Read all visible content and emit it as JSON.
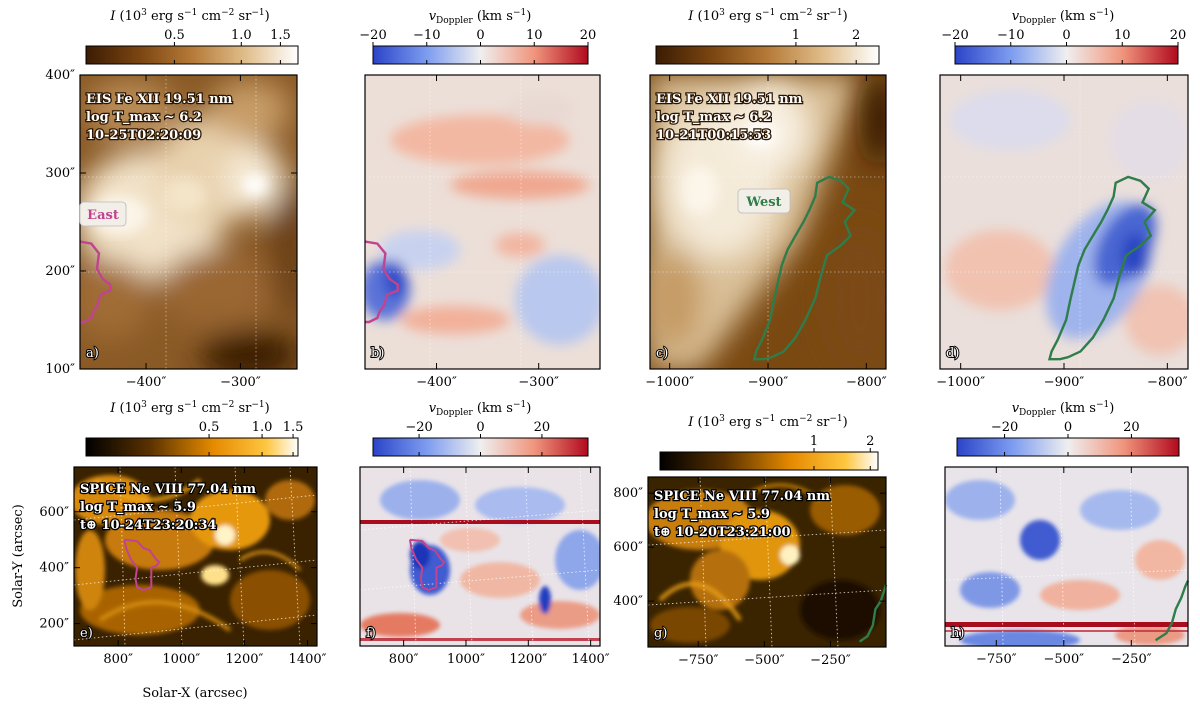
{
  "chart_data": [
    {
      "type": "heatmap",
      "panel_label": "a)",
      "map": "intensity",
      "instrument": "EIS",
      "line": "Fe XII 19.51 nm",
      "ann_lines": [
        "EIS Fe XII 19.51 nm",
        "log T_max ~ 6.2",
        "10-25T02:20:09"
      ],
      "colorbar": {
        "label": "I (10^3 erg s^-1 cm^-2 sr^-1)",
        "scale": "log",
        "range": [
          0.2,
          1.8
        ],
        "ticks": [
          0.5,
          1.0,
          1.5
        ],
        "tick_labels": [
          "0.5",
          "1.0",
          "1.5"
        ]
      },
      "xlim": [
        -470,
        -240
      ],
      "ylim": [
        100,
        400
      ],
      "xticks": [
        -400,
        -300
      ],
      "xtick_labels": [
        "−400″",
        "−300″"
      ],
      "yticks": [
        100,
        200,
        300,
        400
      ],
      "ytick_labels": [
        "100″",
        "200″",
        "300″",
        "400″"
      ],
      "region_label": "East",
      "contour_color": "#c0448f",
      "contour": [
        [
          -470,
          230
        ],
        [
          -458,
          228
        ],
        [
          -450,
          218
        ],
        [
          -452,
          202
        ],
        [
          -446,
          192
        ],
        [
          -438,
          186
        ],
        [
          -438,
          180
        ],
        [
          -448,
          176
        ],
        [
          -452,
          164
        ],
        [
          -456,
          158
        ],
        [
          -458,
          152
        ],
        [
          -466,
          148
        ],
        [
          -470,
          148
        ]
      ]
    },
    {
      "type": "heatmap",
      "panel_label": "b)",
      "map": "doppler",
      "colorbar": {
        "label": "v_Doppler (km s^-1)",
        "range": [
          -20,
          20
        ],
        "ticks": [
          -20,
          -10,
          0,
          10,
          20
        ],
        "tick_labels": [
          "−20",
          "−10",
          "0",
          "10",
          "20"
        ]
      },
      "xlim": [
        -470,
        -240
      ],
      "ylim": [
        100,
        400
      ],
      "xticks": [
        -400,
        -300
      ],
      "xtick_labels": [
        "−400″",
        "−300″"
      ],
      "contour_color": "#c0448f",
      "contour": [
        [
          -470,
          230
        ],
        [
          -458,
          228
        ],
        [
          -450,
          218
        ],
        [
          -452,
          202
        ],
        [
          -446,
          192
        ],
        [
          -438,
          186
        ],
        [
          -438,
          180
        ],
        [
          -448,
          176
        ],
        [
          -452,
          164
        ],
        [
          -456,
          158
        ],
        [
          -458,
          152
        ],
        [
          -466,
          148
        ],
        [
          -470,
          148
        ]
      ]
    },
    {
      "type": "heatmap",
      "panel_label": "c)",
      "map": "intensity",
      "instrument": "EIS",
      "line": "Fe XII 19.51 nm",
      "ann_lines": [
        "EIS Fe XII 19.51 nm",
        "log T_max ~ 6.2",
        "10-21T00:15:53"
      ],
      "colorbar": {
        "label": "I (10^3 erg s^-1 cm^-2 sr^-1)",
        "scale": "log",
        "range": [
          0.2,
          2.6
        ],
        "ticks": [
          1,
          2
        ],
        "tick_labels": [
          "1",
          "2"
        ]
      },
      "xlim": [
        -1020,
        -780
      ],
      "ylim": [
        100,
        400
      ],
      "xticks": [
        -1000,
        -900,
        -800
      ],
      "xtick_labels": [
        "−1000″",
        "−900″",
        "−800″"
      ],
      "region_label": "West",
      "contour_color": "#2e7d4a",
      "contour": [
        [
          -896,
          112
        ],
        [
          -884,
          118
        ],
        [
          -872,
          132
        ],
        [
          -862,
          150
        ],
        [
          -852,
          172
        ],
        [
          -846,
          196
        ],
        [
          -840,
          216
        ],
        [
          -826,
          226
        ],
        [
          -816,
          236
        ],
        [
          -822,
          250
        ],
        [
          -812,
          262
        ],
        [
          -824,
          270
        ],
        [
          -818,
          284
        ],
        [
          -826,
          292
        ],
        [
          -838,
          296
        ],
        [
          -850,
          290
        ],
        [
          -852,
          276
        ],
        [
          -858,
          262
        ],
        [
          -864,
          250
        ],
        [
          -872,
          236
        ],
        [
          -880,
          222
        ],
        [
          -886,
          206
        ],
        [
          -890,
          188
        ],
        [
          -894,
          170
        ],
        [
          -898,
          150
        ],
        [
          -906,
          130
        ],
        [
          -912,
          118
        ],
        [
          -914,
          110
        ],
        [
          -904,
          110
        ],
        [
          -896,
          112
        ]
      ]
    },
    {
      "type": "heatmap",
      "panel_label": "d)",
      "map": "doppler",
      "colorbar": {
        "label": "v_Doppler (km s^-1)",
        "range": [
          -20,
          20
        ],
        "ticks": [
          -20,
          -10,
          0,
          10,
          20
        ],
        "tick_labels": [
          "−20",
          "−10",
          "0",
          "10",
          "20"
        ]
      },
      "xlim": [
        -1020,
        -780
      ],
      "ylim": [
        100,
        400
      ],
      "xticks": [
        -1000,
        -900,
        -800
      ],
      "xtick_labels": [
        "−1000″",
        "−900″",
        "−800″"
      ],
      "contour_color": "#2e7d4a",
      "contour": [
        [
          -896,
          112
        ],
        [
          -884,
          118
        ],
        [
          -872,
          132
        ],
        [
          -862,
          150
        ],
        [
          -852,
          172
        ],
        [
          -846,
          196
        ],
        [
          -840,
          216
        ],
        [
          -826,
          226
        ],
        [
          -816,
          236
        ],
        [
          -822,
          250
        ],
        [
          -812,
          262
        ],
        [
          -824,
          270
        ],
        [
          -818,
          284
        ],
        [
          -826,
          292
        ],
        [
          -838,
          296
        ],
        [
          -850,
          290
        ],
        [
          -852,
          276
        ],
        [
          -858,
          262
        ],
        [
          -864,
          250
        ],
        [
          -872,
          236
        ],
        [
          -880,
          222
        ],
        [
          -886,
          206
        ],
        [
          -890,
          188
        ],
        [
          -894,
          170
        ],
        [
          -898,
          150
        ],
        [
          -906,
          130
        ],
        [
          -912,
          118
        ],
        [
          -914,
          110
        ],
        [
          -904,
          110
        ],
        [
          -896,
          112
        ]
      ]
    },
    {
      "type": "heatmap",
      "panel_label": "e)",
      "map": "intensity_spice",
      "instrument": "SPICE",
      "line": "Ne VIII 77.04 nm",
      "ann_lines": [
        "SPICE Ne VIII 77.04 nm",
        "log T_max ~ 5.9",
        "t⊕ 10-24T23:20:34"
      ],
      "colorbar": {
        "label": "I (10^3 erg s^-1 cm^-2 sr^-1)",
        "scale": "log",
        "range": [
          0.1,
          1.6
        ],
        "ticks": [
          0.5,
          1.0,
          1.5
        ],
        "tick_labels": [
          "0.5",
          "1.0",
          "1.5"
        ]
      },
      "xlim": [
        660,
        1430
      ],
      "ylim": [
        120,
        760
      ],
      "xticks": [
        800,
        1000,
        1200,
        1400
      ],
      "xtick_labels": [
        "800″",
        "1000″",
        "1200″",
        "1400″"
      ],
      "yticks": [
        200,
        400,
        600
      ],
      "ytick_labels": [
        "200″",
        "400″",
        "600″"
      ],
      "xlabel": "Solar-X (arcsec)",
      "ylabel": "Solar-Y (arcsec)",
      "contour_color": "#c0448f",
      "contour": [
        [
          820,
          500
        ],
        [
          860,
          495
        ],
        [
          880,
          470
        ],
        [
          900,
          462
        ],
        [
          920,
          430
        ],
        [
          930,
          420
        ],
        [
          922,
          408
        ],
        [
          905,
          400
        ],
        [
          905,
          330
        ],
        [
          880,
          320
        ],
        [
          860,
          330
        ],
        [
          855,
          360
        ],
        [
          860,
          400
        ],
        [
          840,
          430
        ],
        [
          825,
          470
        ],
        [
          820,
          500
        ]
      ]
    },
    {
      "type": "heatmap",
      "panel_label": "f)",
      "map": "doppler_spice",
      "colorbar": {
        "label": "v_Doppler (km s^-1)",
        "range": [
          -35,
          35
        ],
        "ticks": [
          -20,
          0,
          20
        ],
        "tick_labels": [
          "−20",
          "0",
          "20"
        ]
      },
      "xlim": [
        660,
        1430
      ],
      "ylim": [
        120,
        760
      ],
      "xticks": [
        800,
        1000,
        1200,
        1400
      ],
      "xtick_labels": [
        "800″",
        "1000″",
        "1200″",
        "1400″"
      ],
      "contour_color": "#c0448f",
      "contour": [
        [
          820,
          500
        ],
        [
          860,
          495
        ],
        [
          880,
          470
        ],
        [
          900,
          462
        ],
        [
          920,
          430
        ],
        [
          930,
          420
        ],
        [
          922,
          408
        ],
        [
          905,
          400
        ],
        [
          905,
          330
        ],
        [
          880,
          320
        ],
        [
          860,
          330
        ],
        [
          855,
          360
        ],
        [
          860,
          400
        ],
        [
          840,
          430
        ],
        [
          825,
          470
        ],
        [
          820,
          500
        ]
      ]
    },
    {
      "type": "heatmap",
      "panel_label": "g)",
      "map": "intensity_spice",
      "instrument": "SPICE",
      "line": "Ne VIII 77.04 nm",
      "ann_lines": [
        "SPICE Ne VIII 77.04 nm",
        "log T_max ~ 5.9",
        "t⊕ 10-20T23:21:00"
      ],
      "colorbar": {
        "label": "I (10^3 erg s^-1 cm^-2 sr^-1)",
        "scale": "log",
        "range": [
          0.15,
          2.2
        ],
        "ticks": [
          1,
          2
        ],
        "tick_labels": [
          "1",
          "2"
        ]
      },
      "xlim": [
        -940,
        -40
      ],
      "ylim": [
        230,
        860
      ],
      "xticks": [
        -750,
        -500,
        -250
      ],
      "xtick_labels": [
        "−750″",
        "−500″",
        "−250″"
      ],
      "yticks": [
        400,
        600,
        800
      ],
      "ytick_labels": [
        "400″",
        "600″",
        "800″"
      ],
      "contour_color": "#2e7d4a",
      "contour": [
        [
          -140,
          250
        ],
        [
          -110,
          270
        ],
        [
          -90,
          310
        ],
        [
          -80,
          370
        ],
        [
          -60,
          400
        ],
        [
          -50,
          430
        ],
        [
          -40,
          460
        ]
      ]
    },
    {
      "type": "heatmap",
      "panel_label": "h)",
      "map": "doppler_spice",
      "colorbar": {
        "label": "v_Doppler (km s^-1)",
        "range": [
          -35,
          35
        ],
        "ticks": [
          -20,
          0,
          20
        ],
        "tick_labels": [
          "−20",
          "0",
          "20"
        ]
      },
      "xlim": [
        -940,
        -40
      ],
      "ylim": [
        230,
        860
      ],
      "xticks": [
        -750,
        -500,
        -250
      ],
      "xtick_labels": [
        "−750″",
        "−500″",
        "−250″"
      ],
      "contour_color": "#2e7d4a",
      "contour": [
        [
          -160,
          250
        ],
        [
          -120,
          275
        ],
        [
          -100,
          310
        ],
        [
          -85,
          360
        ],
        [
          -65,
          400
        ],
        [
          -50,
          440
        ],
        [
          -40,
          460
        ]
      ]
    }
  ]
}
